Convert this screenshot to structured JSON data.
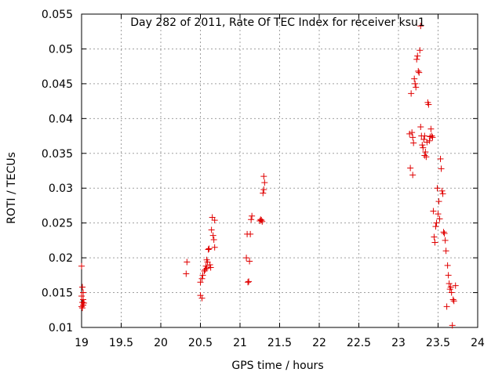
{
  "chart_data": {
    "type": "scatter",
    "title": "Day 282 of 2011, Rate Of TEC Index for receiver ksu1",
    "xlabel": "GPS time / hours",
    "ylabel": "ROTI / TECUs",
    "xlim": [
      19,
      24
    ],
    "ylim": [
      0.01,
      0.055
    ],
    "x_ticks": [
      "19",
      "19.5",
      "20",
      "20.5",
      "21",
      "21.5",
      "22",
      "22.5",
      "23",
      "23.5",
      "24"
    ],
    "y_ticks": [
      "0.01",
      "0.015",
      "0.02",
      "0.025",
      "0.03",
      "0.035",
      "0.04",
      "0.045",
      "0.05",
      "0.055"
    ],
    "grid": true,
    "marker": "plus",
    "marker_color": "#e00000",
    "series": [
      {
        "points": [
          [
            19.0,
            0.0188
          ],
          [
            19.01,
            0.0158
          ],
          [
            19.02,
            0.015
          ],
          [
            19.0,
            0.0145
          ],
          [
            19.02,
            0.014
          ],
          [
            19.01,
            0.0136
          ],
          [
            19.03,
            0.0135
          ],
          [
            19.02,
            0.0132
          ],
          [
            19.0,
            0.013
          ],
          [
            19.01,
            0.0128
          ],
          [
            20.33,
            0.0194
          ],
          [
            20.32,
            0.0177
          ],
          [
            20.5,
            0.0165
          ],
          [
            20.52,
            0.017
          ],
          [
            20.5,
            0.0146
          ],
          [
            20.52,
            0.0142
          ],
          [
            20.53,
            0.0175
          ],
          [
            20.55,
            0.0181
          ],
          [
            20.56,
            0.0183
          ],
          [
            20.57,
            0.0188
          ],
          [
            20.58,
            0.0197
          ],
          [
            20.59,
            0.0194
          ],
          [
            20.6,
            0.0212
          ],
          [
            20.61,
            0.0213
          ],
          [
            20.58,
            0.0185
          ],
          [
            20.62,
            0.019
          ],
          [
            20.63,
            0.0186
          ],
          [
            20.64,
            0.024
          ],
          [
            20.65,
            0.0258
          ],
          [
            20.66,
            0.0232
          ],
          [
            20.67,
            0.0226
          ],
          [
            20.68,
            0.0254
          ],
          [
            20.68,
            0.0215
          ],
          [
            21.08,
            0.02
          ],
          [
            21.09,
            0.0234
          ],
          [
            21.1,
            0.0165
          ],
          [
            21.11,
            0.0166
          ],
          [
            21.12,
            0.0195
          ],
          [
            21.13,
            0.0234
          ],
          [
            21.14,
            0.0255
          ],
          [
            21.15,
            0.026
          ],
          [
            21.25,
            0.0253
          ],
          [
            21.26,
            0.0255
          ],
          [
            21.27,
            0.0254
          ],
          [
            21.28,
            0.0252
          ],
          [
            21.29,
            0.0293
          ],
          [
            21.3,
            0.0298
          ],
          [
            21.3,
            0.0317
          ],
          [
            21.31,
            0.0308
          ],
          [
            23.14,
            0.0378
          ],
          [
            23.15,
            0.0329
          ],
          [
            23.16,
            0.0436
          ],
          [
            23.17,
            0.038
          ],
          [
            23.18,
            0.0319
          ],
          [
            23.18,
            0.0373
          ],
          [
            23.19,
            0.0365
          ],
          [
            23.2,
            0.0457
          ],
          [
            23.21,
            0.045
          ],
          [
            23.22,
            0.0445
          ],
          [
            23.23,
            0.0485
          ],
          [
            23.24,
            0.049
          ],
          [
            23.25,
            0.0468
          ],
          [
            23.26,
            0.0466
          ],
          [
            23.27,
            0.0498
          ],
          [
            23.28,
            0.0533
          ],
          [
            23.28,
            0.0388
          ],
          [
            23.29,
            0.0375
          ],
          [
            23.3,
            0.0362
          ],
          [
            23.31,
            0.0358
          ],
          [
            23.32,
            0.037
          ],
          [
            23.33,
            0.0375
          ],
          [
            23.33,
            0.0347
          ],
          [
            23.34,
            0.0352
          ],
          [
            23.35,
            0.0345
          ],
          [
            23.36,
            0.0366
          ],
          [
            23.37,
            0.0423
          ],
          [
            23.38,
            0.042
          ],
          [
            23.39,
            0.0368
          ],
          [
            23.4,
            0.0374
          ],
          [
            23.41,
            0.0385
          ],
          [
            23.42,
            0.0375
          ],
          [
            23.43,
            0.0373
          ],
          [
            23.44,
            0.0267
          ],
          [
            23.45,
            0.023
          ],
          [
            23.46,
            0.0222
          ],
          [
            23.47,
            0.0245
          ],
          [
            23.48,
            0.025
          ],
          [
            23.49,
            0.03
          ],
          [
            23.5,
            0.0263
          ],
          [
            23.51,
            0.0281
          ],
          [
            23.52,
            0.0256
          ],
          [
            23.53,
            0.0342
          ],
          [
            23.54,
            0.0328
          ],
          [
            23.55,
            0.0296
          ],
          [
            23.56,
            0.0292
          ],
          [
            23.57,
            0.0237
          ],
          [
            23.58,
            0.0235
          ],
          [
            23.59,
            0.0225
          ],
          [
            23.6,
            0.021
          ],
          [
            23.61,
            0.013
          ],
          [
            23.62,
            0.0189
          ],
          [
            23.63,
            0.0175
          ],
          [
            23.64,
            0.0163
          ],
          [
            23.65,
            0.0155
          ],
          [
            23.66,
            0.0158
          ],
          [
            23.67,
            0.015
          ],
          [
            23.68,
            0.0103
          ],
          [
            23.69,
            0.014
          ],
          [
            23.7,
            0.0138
          ],
          [
            23.72,
            0.016
          ]
        ]
      }
    ]
  }
}
